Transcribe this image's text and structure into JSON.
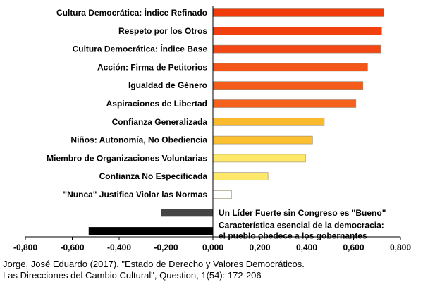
{
  "chart_data": {
    "type": "bar",
    "orientation": "horizontal",
    "xlim": [
      -0.8,
      0.8
    ],
    "x_ticks": [
      "-0,800",
      "-0,600",
      "-0,400",
      "-0,200",
      "0,000",
      "0,200",
      "0,400",
      "0,600",
      "0,800"
    ],
    "grid": false,
    "legend": "none",
    "categories": [
      {
        "label": "Cultura Democrática: Índice Refinado",
        "value": 0.73,
        "color": "#f03c0a"
      },
      {
        "label": "Respeto por los Otros",
        "value": 0.72,
        "color": "#f04010"
      },
      {
        "label": "Cultura Democrática: Índice Base",
        "value": 0.715,
        "color": "#f24614"
      },
      {
        "label": "Acción: Firma de Petitorios",
        "value": 0.66,
        "color": "#f4561a"
      },
      {
        "label": "Igualdad de Género",
        "value": 0.64,
        "color": "#f55c1c"
      },
      {
        "label": "Aspiraciones de Libertad",
        "value": 0.61,
        "color": "#f4621e"
      },
      {
        "label": "Confianza Generalizada",
        "value": 0.475,
        "color": "#fbb92c"
      },
      {
        "label": "Niños: Autonomía, No Obediencia",
        "value": 0.425,
        "color": "#fbbf30"
      },
      {
        "label": "Miembro de Organizaciones Voluntarias",
        "value": 0.395,
        "color": "#fde86a"
      },
      {
        "label": "Confianza No Especificada",
        "value": 0.235,
        "color": "#fde86a"
      },
      {
        "label": "\"Nunca\" Justifica Violar las Normas",
        "value": 0.08,
        "color": "#ffffff"
      },
      {
        "label": "Un Líder Fuerte sin Congreso es \"Bueno\"",
        "value": -0.22,
        "color": "#444444"
      },
      {
        "label": "Característica esencial de la democracia: el pueblo obedece a los gobernantes",
        "label_lines": [
          "Característica esencial de la democracia:",
          "el pueblo obedece a los gobernantes"
        ],
        "value": -0.53,
        "color": "#000000"
      }
    ]
  },
  "source": {
    "line1": "Jorge, José Eduardo (2017). \"Estado de Derecho y Valores Democráticos.",
    "line2": "Las Direcciones del Cambio Cultural\", Question, 1(54): 172-206"
  }
}
